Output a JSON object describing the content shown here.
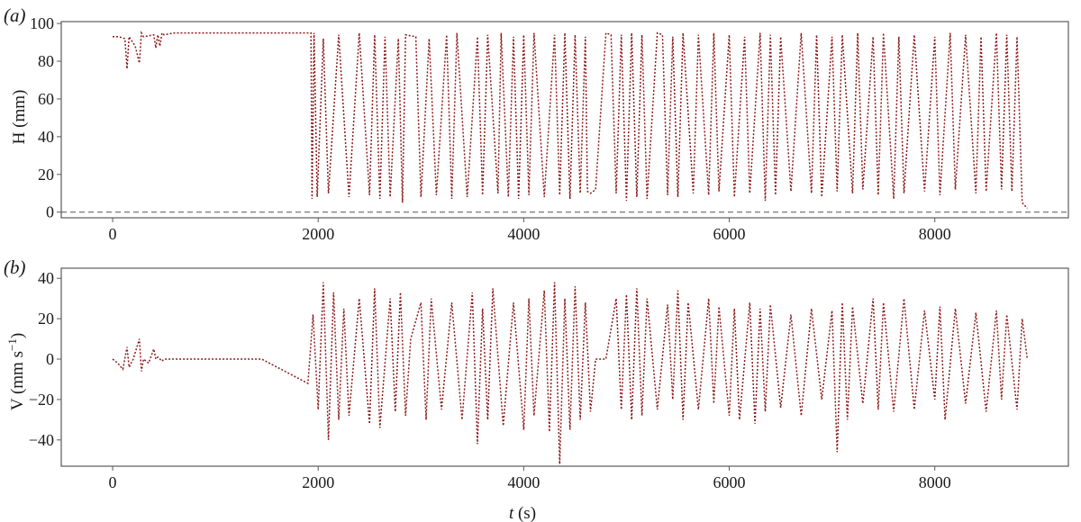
{
  "chart_data": [
    {
      "type": "line",
      "panel_label": "(a)",
      "ylabel": "H (mm)",
      "xlim": [
        -500,
        9300
      ],
      "ylim": [
        -3,
        101
      ],
      "xticks": [
        0,
        2000,
        4000,
        6000,
        8000
      ],
      "yticks": [
        0,
        20,
        40,
        60,
        80,
        100
      ],
      "reference_line": {
        "y": 0,
        "style": "dashed",
        "color": "#555555"
      },
      "series": [
        {
          "color": "#8b1a1a",
          "style": "dotted",
          "x": [
            0,
            60,
            120,
            140,
            160,
            220,
            260,
            280,
            300,
            400,
            420,
            440,
            460,
            480,
            500,
            600,
            1000,
            1500,
            1930,
            1940,
            1960,
            1990,
            2050,
            2100,
            2200,
            2300,
            2400,
            2500,
            2550,
            2600,
            2650,
            2700,
            2780,
            2820,
            2850,
            2950,
            3000,
            3080,
            3150,
            3250,
            3300,
            3350,
            3450,
            3550,
            3600,
            3650,
            3750,
            3780,
            3850,
            3900,
            3950,
            4000,
            4050,
            4100,
            4200,
            4300,
            4350,
            4400,
            4450,
            4500,
            4550,
            4600,
            4620,
            4650,
            4700,
            4800,
            4850,
            4900,
            4950,
            5000,
            5050,
            5100,
            5150,
            5200,
            5300,
            5350,
            5400,
            5450,
            5500,
            5550,
            5650,
            5700,
            5800,
            5850,
            5900,
            6000,
            6050,
            6150,
            6200,
            6300,
            6350,
            6400,
            6450,
            6500,
            6600,
            6700,
            6800,
            6850,
            6900,
            7000,
            7050,
            7100,
            7200,
            7250,
            7300,
            7400,
            7450,
            7500,
            7600,
            7650,
            7700,
            7800,
            7900,
            8000,
            8050,
            8150,
            8200,
            8300,
            8400,
            8450,
            8500,
            8600,
            8650,
            8700,
            8750,
            8800,
            8850,
            8900
          ],
          "y": [
            93,
            93,
            92,
            76,
            93,
            88,
            79,
            95,
            93,
            94,
            87,
            94,
            88,
            95,
            94,
            95,
            95,
            95,
            95,
            7,
            95,
            8,
            92,
            10,
            94,
            8,
            95,
            9,
            94,
            7,
            93,
            8,
            92,
            5,
            94,
            93,
            8,
            92,
            9,
            94,
            7,
            95,
            8,
            93,
            9,
            94,
            10,
            95,
            8,
            93,
            7,
            94,
            9,
            95,
            8,
            94,
            9,
            95,
            7,
            94,
            10,
            93,
            11,
            10,
            12,
            95,
            94,
            10,
            94,
            6,
            95,
            8,
            94,
            7,
            95,
            94,
            9,
            93,
            8,
            95,
            10,
            94,
            9,
            95,
            11,
            94,
            8,
            93,
            10,
            95,
            6,
            94,
            9,
            93,
            11,
            95,
            10,
            94,
            8,
            93,
            11,
            94,
            10,
            95,
            12,
            93,
            9,
            95,
            7,
            93,
            10,
            94,
            11,
            93,
            9,
            95,
            12,
            94,
            10,
            93,
            11,
            95,
            12,
            94,
            11,
            93,
            5,
            2
          ]
        }
      ]
    },
    {
      "type": "line",
      "panel_label": "(b)",
      "ylabel_prefix": "V (mm s",
      "ylabel_sup": "−1",
      "ylabel_suffix": ")",
      "xlabel_var": "t",
      "xlabel_unit": " (s)",
      "xlim": [
        -500,
        9300
      ],
      "ylim": [
        -53,
        45
      ],
      "xticks": [
        0,
        2000,
        4000,
        6000,
        8000
      ],
      "yticks": [
        -40,
        -20,
        0,
        20,
        40
      ],
      "series": [
        {
          "color": "#8b1a1a",
          "style": "dotted",
          "x": [
            0,
            50,
            100,
            140,
            160,
            200,
            260,
            280,
            300,
            350,
            400,
            420,
            440,
            460,
            480,
            500,
            800,
            1200,
            1450,
            1900,
            1950,
            2000,
            2050,
            2100,
            2150,
            2200,
            2250,
            2300,
            2400,
            2500,
            2550,
            2600,
            2700,
            2750,
            2800,
            2850,
            2900,
            3000,
            3050,
            3100,
            3200,
            3300,
            3400,
            3500,
            3550,
            3600,
            3650,
            3700,
            3800,
            3900,
            4000,
            4050,
            4100,
            4200,
            4250,
            4300,
            4350,
            4400,
            4450,
            4500,
            4550,
            4600,
            4650,
            4700,
            4800,
            4900,
            4950,
            5000,
            5050,
            5100,
            5150,
            5200,
            5300,
            5400,
            5450,
            5500,
            5550,
            5600,
            5700,
            5800,
            5850,
            5900,
            6000,
            6050,
            6100,
            6200,
            6250,
            6300,
            6350,
            6400,
            6500,
            6600,
            6700,
            6800,
            6900,
            7000,
            7050,
            7100,
            7150,
            7200,
            7300,
            7400,
            7450,
            7500,
            7600,
            7700,
            7800,
            7900,
            8000,
            8050,
            8100,
            8200,
            8300,
            8400,
            8500,
            8600,
            8650,
            8700,
            8800,
            8850,
            8900
          ],
          "y": [
            0,
            -2,
            -5,
            6,
            -4,
            0,
            10,
            -6,
            0,
            -2,
            5,
            0,
            1,
            0,
            -1,
            0,
            0,
            0,
            0,
            -12,
            22,
            -25,
            38,
            -40,
            33,
            -30,
            25,
            -28,
            30,
            -32,
            35,
            -34,
            30,
            -26,
            33,
            -28,
            10,
            28,
            -30,
            30,
            -25,
            28,
            -30,
            33,
            -42,
            25,
            -30,
            35,
            -33,
            28,
            -35,
            30,
            -28,
            34,
            -36,
            38,
            -52,
            30,
            -35,
            36,
            -30,
            28,
            -26,
            0,
            0,
            30,
            -25,
            32,
            -30,
            35,
            -28,
            30,
            -25,
            27,
            -20,
            34,
            -30,
            28,
            -25,
            30,
            -22,
            26,
            -28,
            25,
            -30,
            28,
            -32,
            25,
            -26,
            27,
            -24,
            22,
            -28,
            25,
            -20,
            24,
            -46,
            28,
            -30,
            26,
            -22,
            30,
            -25,
            28,
            -26,
            30,
            -25,
            24,
            -20,
            26,
            -30,
            25,
            -22,
            23,
            -26,
            24,
            -20,
            22,
            -25,
            20,
            0
          ]
        }
      ]
    }
  ]
}
